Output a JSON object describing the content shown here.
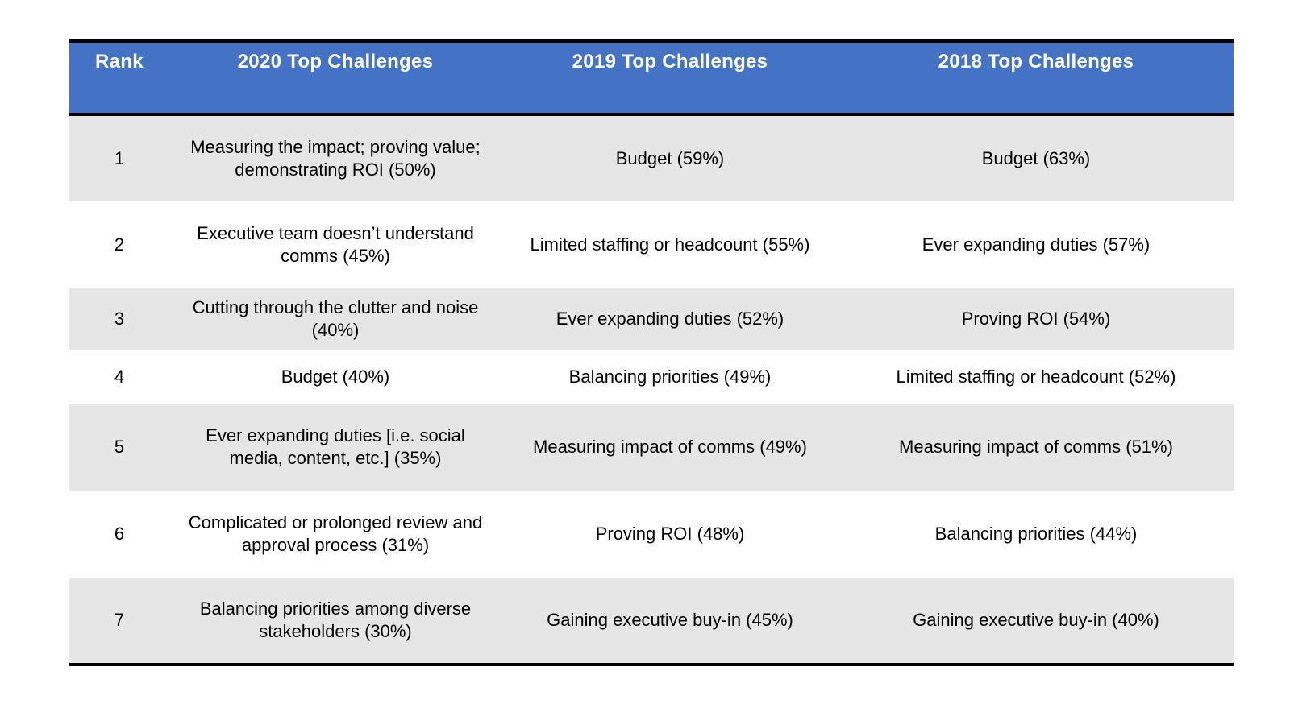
{
  "table": {
    "headers": {
      "rank": "Rank",
      "y2020": "2020 Top Challenges",
      "y2019": "2019 Top Challenges",
      "y2018": "2018 Top Challenges"
    },
    "rows": [
      {
        "rank": "1",
        "y2020_line1": "Measuring the impact; proving value;",
        "y2020_line2": "demonstrating ROI (50%)",
        "y2019": "Budget (59%)",
        "y2018": "Budget (63%)"
      },
      {
        "rank": "2",
        "y2020_line1": "Executive team doesn’t understand",
        "y2020_line2": "comms (45%)",
        "y2019": "Limited staffing or headcount (55%)",
        "y2018": "Ever expanding duties (57%)"
      },
      {
        "rank": "3",
        "y2020_line1": "Cutting through the clutter and noise",
        "y2020_line2": "(40%)",
        "y2019": "Ever expanding duties (52%)",
        "y2018": "Proving ROI (54%)"
      },
      {
        "rank": "4",
        "y2020_line1": "Budget (40%)",
        "y2020_line2": "",
        "y2019": "Balancing priorities (49%)",
        "y2018": "Limited staffing or headcount (52%)"
      },
      {
        "rank": "5",
        "y2020_line1": "Ever expanding duties [i.e. social",
        "y2020_line2": "media, content, etc.] (35%)",
        "y2019": "Measuring impact of comms (49%)",
        "y2018": "Measuring impact of comms (51%)"
      },
      {
        "rank": "6",
        "y2020_line1": "Complicated or prolonged review and",
        "y2020_line2": "approval process (31%)",
        "y2019": "Proving ROI (48%)",
        "y2018": "Balancing priorities (44%)"
      },
      {
        "rank": "7",
        "y2020_line1": "Balancing priorities among diverse",
        "y2020_line2": "stakeholders (30%)",
        "y2019": "Gaining executive buy-in (45%)",
        "y2018": "Gaining executive buy-in (40%)"
      }
    ]
  },
  "colors": {
    "header_bg": "#4472c4",
    "header_text": "#ffffff",
    "shaded_row": "#e7e6e6",
    "rule": "#000000"
  }
}
